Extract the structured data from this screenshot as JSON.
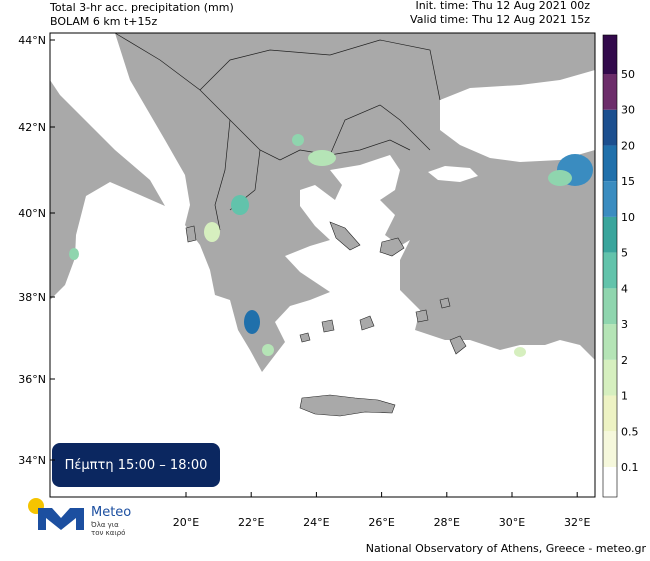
{
  "header": {
    "title": "Total 3-hr acc. precipitation (mm)",
    "model": "BOLAM 6 km t+15z",
    "init_time": "Init. time: Thu 12 Aug 2021 00z",
    "valid_time": "Valid time: Thu 12 Aug 2021 15z"
  },
  "map": {
    "lat_labels": [
      "44°N",
      "42°N",
      "40°N",
      "38°N",
      "36°N",
      "34°N"
    ],
    "lon_labels": [
      "20°E",
      "22°E",
      "24°E",
      "26°E",
      "28°E",
      "30°E",
      "32°E"
    ]
  },
  "colorbar": {
    "labels": [
      "0.1",
      "0.5",
      "1",
      "2",
      "3",
      "4",
      "5",
      "10",
      "15",
      "20",
      "30",
      "50"
    ],
    "colors": [
      "#ffffff",
      "#f6f8dc",
      "#eef3c4",
      "#d6efbf",
      "#b5e4b6",
      "#8fd5ae",
      "#62c3ab",
      "#3aa59c",
      "#3a8cc0",
      "#2070ab",
      "#1c4f8f",
      "#6c2d6a",
      "#330a4c"
    ]
  },
  "time_box": "Πέμπτη 15:00 – 18:00",
  "logo": {
    "name": "Meteo",
    "tagline": [
      "Όλα για",
      "τον καιρό"
    ]
  },
  "footer": "National Observatory of Athens, Greece - meteo.gr"
}
